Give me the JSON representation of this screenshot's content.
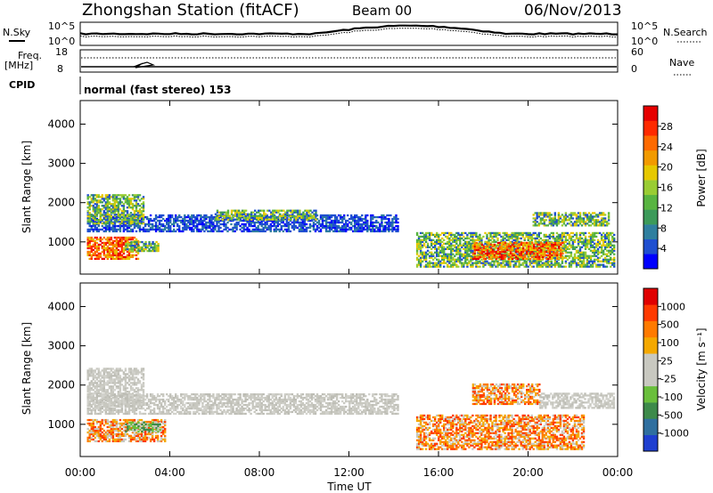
{
  "header": {
    "title": "Zhongshan Station (fitACF)",
    "beam": "Beam 00",
    "date": "06/Nov/2013"
  },
  "top_panels": {
    "nsky_label": "N.Sky",
    "nsky_ticks": [
      "10^5",
      "10^0"
    ],
    "nsearch_label": "N.Search",
    "nsearch_ticks": [
      "10^5",
      "10^0"
    ],
    "freq_label": "Freq.",
    "freq_unit": "[MHz]",
    "freq_ticks": [
      "18",
      "8"
    ],
    "nave_label": "Nave",
    "nave_ticks": [
      "60",
      "0"
    ],
    "cpid_label": "CPID",
    "cpid_value": "normal (fast stereo) 153"
  },
  "chart_data": [
    {
      "type": "heatmap",
      "name": "power-panel",
      "ylabel": "Slant Range [km]",
      "ylim": [
        180,
        4600
      ],
      "yticks": [
        1000,
        2000,
        3000,
        4000
      ],
      "xlim": [
        0,
        24
      ],
      "colorbar": {
        "label": "Power [dB]",
        "ticks": [
          "28",
          "24",
          "20",
          "16",
          "12",
          "8",
          "4"
        ],
        "colors": [
          "#0000ff",
          "#1f4fd0",
          "#2f7f9f",
          "#3c9a5a",
          "#58b441",
          "#99cc33",
          "#e6c800",
          "#f29a00",
          "#ff6a00",
          "#ff2a00",
          "#e60000"
        ]
      },
      "bands": [
        {
          "t0": 0.3,
          "t1": 14.2,
          "r0": 1250,
          "r1": 1700,
          "level": "low"
        },
        {
          "t0": 0.3,
          "t1": 2.8,
          "r0": 1450,
          "r1": 2200,
          "level": "mid"
        },
        {
          "t0": 0.3,
          "t1": 2.6,
          "r0": 550,
          "r1": 1100,
          "level": "high"
        },
        {
          "t0": 2.0,
          "t1": 3.5,
          "r0": 750,
          "r1": 1000,
          "level": "mid"
        },
        {
          "t0": 6.0,
          "t1": 10.5,
          "r0": 1550,
          "r1": 1800,
          "level": "mid"
        },
        {
          "t0": 15.0,
          "t1": 23.8,
          "r0": 350,
          "r1": 1250,
          "level": "mid"
        },
        {
          "t0": 17.5,
          "t1": 21.5,
          "r0": 550,
          "r1": 1000,
          "level": "high"
        },
        {
          "t0": 20.2,
          "t1": 23.6,
          "r0": 1400,
          "r1": 1750,
          "level": "mid"
        }
      ]
    },
    {
      "type": "heatmap",
      "name": "velocity-panel",
      "ylabel": "Slant Range [km]",
      "ylim": [
        180,
        4600
      ],
      "yticks": [
        1000,
        2000,
        3000,
        4000
      ],
      "xlim": [
        0,
        24
      ],
      "xticks": [
        "00:00",
        "04:00",
        "08:00",
        "12:00",
        "16:00",
        "20:00",
        "00:00"
      ],
      "xlabel": "Time UT",
      "colorbar": {
        "label": "Velocity [m s⁻¹]",
        "ticks": [
          "1000",
          "500",
          "100",
          "25",
          "-25",
          "-100",
          "-500",
          "-1000"
        ],
        "colors": [
          "#1f3fd0",
          "#2f6f9f",
          "#3d8a4a",
          "#6abf3c",
          "#c8c8c0",
          "#c8c8c0",
          "#f4a800",
          "#ff7a00",
          "#ff3a00",
          "#e00000"
        ]
      },
      "bands": [
        {
          "t0": 0.3,
          "t1": 14.2,
          "r0": 1250,
          "r1": 1750,
          "level": "gray"
        },
        {
          "t0": 0.3,
          "t1": 2.8,
          "r0": 1450,
          "r1": 2400,
          "level": "gray"
        },
        {
          "t0": 0.3,
          "t1": 3.8,
          "r0": 550,
          "r1": 1100,
          "level": "orange"
        },
        {
          "t0": 2.0,
          "t1": 3.6,
          "r0": 800,
          "r1": 1050,
          "level": "green"
        },
        {
          "t0": 15.0,
          "t1": 22.5,
          "r0": 350,
          "r1": 1250,
          "level": "orange"
        },
        {
          "t0": 17.5,
          "t1": 20.5,
          "r0": 1500,
          "r1": 2000,
          "level": "orange"
        },
        {
          "t0": 20.5,
          "t1": 23.8,
          "r0": 1400,
          "r1": 1800,
          "level": "gray"
        }
      ]
    }
  ]
}
